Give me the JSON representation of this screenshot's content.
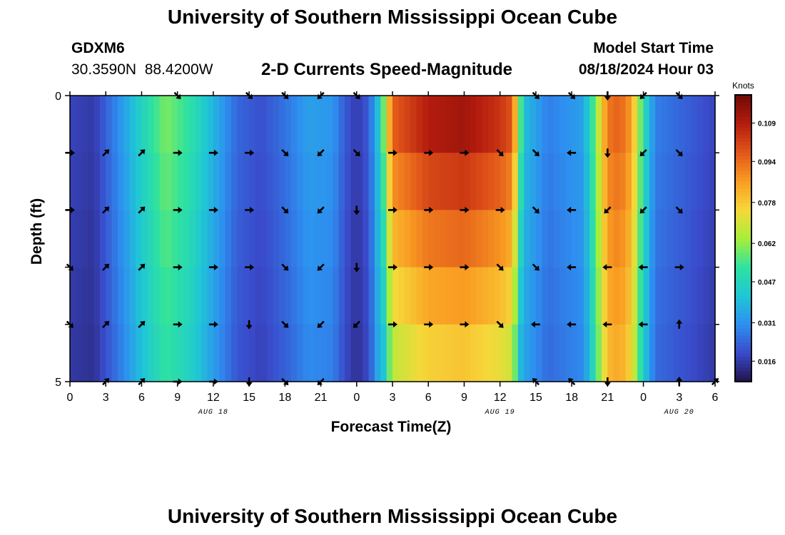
{
  "header": {
    "title": "University of Southern Mississippi Ocean Cube",
    "station": "GDXM6",
    "coords": "30.3590N  88.4200W",
    "subtitle": "2-D Currents Speed-Magnitude",
    "model_start_label": "Model Start Time",
    "model_start_value": "08/18/2024 Hour 03"
  },
  "footer": {
    "title": "University of Southern Mississippi Ocean Cube"
  },
  "chart_data": {
    "type": "heatmap",
    "xlabel": "Forecast Time(Z)",
    "ylabel": "Depth (ft)",
    "x_hours": [
      0,
      3,
      6,
      9,
      12,
      15,
      18,
      21,
      24,
      27,
      30,
      33,
      36,
      39,
      42,
      45,
      48,
      51,
      54
    ],
    "x_tick_labels": [
      "0",
      "3",
      "6",
      "9",
      "12",
      "15",
      "18",
      "21",
      "0",
      "3",
      "6",
      "9",
      "12",
      "15",
      "18",
      "21",
      "0",
      "3",
      "6"
    ],
    "date_labels": [
      {
        "hour": 12,
        "text": "AUG 18"
      },
      {
        "hour": 36,
        "text": "AUG 19"
      },
      {
        "hour": 51,
        "text": "AUG 20"
      }
    ],
    "y_range": [
      0,
      5
    ],
    "y_tick_labels": [
      {
        "depth": 0,
        "text": "0"
      },
      {
        "depth": 5,
        "text": "5"
      }
    ],
    "depth_levels": 5,
    "colorbar": {
      "label": "Knots",
      "range": [
        0.008,
        0.12
      ],
      "ticks": [
        0.016,
        0.031,
        0.047,
        0.062,
        0.078,
        0.094,
        0.109
      ],
      "tick_labels": [
        "0.016",
        "0.031",
        "0.047",
        "0.062",
        "0.078",
        "0.094",
        "0.109"
      ],
      "colors": [
        "#21124a",
        "#3a4aca",
        "#2e8ef0",
        "#1fc6d6",
        "#2ee2a0",
        "#a8ee3a",
        "#f6d83a",
        "#f99c22",
        "#e2561a",
        "#b41c0e",
        "#700a04"
      ]
    },
    "speed_profile_knots": [
      [
        0,
        0.018
      ],
      [
        2,
        0.016
      ],
      [
        4,
        0.03
      ],
      [
        6,
        0.046
      ],
      [
        8,
        0.06
      ],
      [
        10,
        0.052
      ],
      [
        12,
        0.038
      ],
      [
        14,
        0.024
      ],
      [
        16,
        0.02
      ],
      [
        18,
        0.026
      ],
      [
        20,
        0.034
      ],
      [
        22,
        0.032
      ],
      [
        23,
        0.022
      ],
      [
        24,
        0.016
      ],
      [
        25,
        0.022
      ],
      [
        26,
        0.046
      ],
      [
        27,
        0.096
      ],
      [
        30,
        0.109
      ],
      [
        33,
        0.112
      ],
      [
        36,
        0.104
      ],
      [
        37,
        0.098
      ],
      [
        38,
        0.04
      ],
      [
        40,
        0.028
      ],
      [
        43,
        0.034
      ],
      [
        44,
        0.06
      ],
      [
        45,
        0.092
      ],
      [
        46,
        0.096
      ],
      [
        47,
        0.086
      ],
      [
        48,
        0.05
      ],
      [
        49,
        0.028
      ],
      [
        51,
        0.024
      ],
      [
        54,
        0.018
      ]
    ],
    "vector_rows": [
      {
        "depth": 0,
        "dirs": [
          "",
          "",
          "",
          "SE",
          "",
          "SE",
          "SE",
          "SW",
          "SE",
          "",
          "",
          "",
          "",
          "SE",
          "SE",
          "S",
          "SW",
          "SE",
          ""
        ]
      },
      {
        "depth": 1,
        "dirs": [
          "E",
          "NE",
          "NE",
          "E",
          "E",
          "E",
          "SE",
          "SW",
          "SE",
          "E",
          "E",
          "E",
          "SE",
          "SE",
          "W",
          "S",
          "SW",
          "SE",
          ""
        ]
      },
      {
        "depth": 2,
        "dirs": [
          "E",
          "NE",
          "NE",
          "E",
          "E",
          "E",
          "SE",
          "SW",
          "S",
          "E",
          "E",
          "E",
          "E",
          "SE",
          "W",
          "SW",
          "SW",
          "SE",
          ""
        ]
      },
      {
        "depth": 3,
        "dirs": [
          "SE",
          "NE",
          "NE",
          "E",
          "E",
          "E",
          "SE",
          "SW",
          "S",
          "E",
          "E",
          "E",
          "SE",
          "SE",
          "W",
          "W",
          "W",
          "E",
          ""
        ]
      },
      {
        "depth": 4,
        "dirs": [
          "SE",
          "NE",
          "NE",
          "E",
          "E",
          "S",
          "SE",
          "SW",
          "SW",
          "E",
          "E",
          "E",
          "SE",
          "W",
          "W",
          "W",
          "W",
          "N",
          ""
        ]
      },
      {
        "depth": 5,
        "dirs": [
          "",
          "NE",
          "NE",
          "E",
          "E",
          "S",
          "SE",
          "SW",
          "",
          "",
          "",
          "",
          "",
          "NW",
          "NW",
          "S",
          "",
          "N",
          "NE"
        ]
      }
    ]
  }
}
